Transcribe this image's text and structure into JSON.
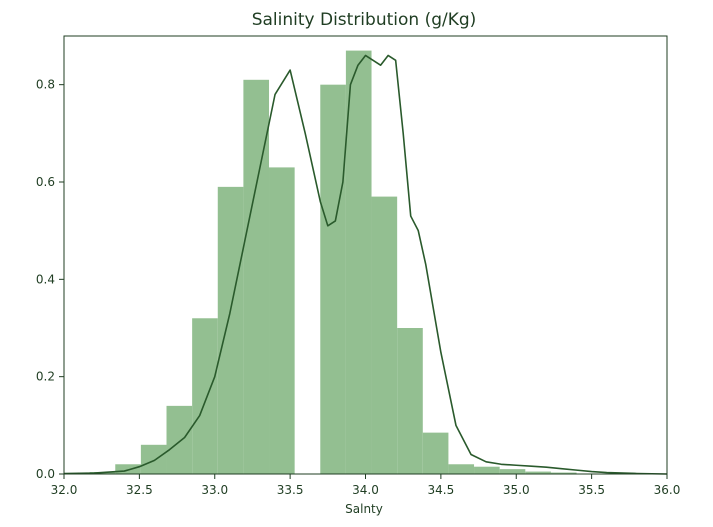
{
  "colors": {
    "bar_fill": "#93bf91",
    "line": "#2a5a2c",
    "frame": "#1f3d22",
    "text": "#1f3d22"
  },
  "chart_data": {
    "type": "bar",
    "title": "Salinity Distribution (g/Kg)",
    "xlabel": "Salnty",
    "ylabel": "",
    "xlim": [
      32.0,
      36.0
    ],
    "ylim": [
      0.0,
      0.9
    ],
    "grid": false,
    "x_ticks": [
      "32.0",
      "32.5",
      "33.0",
      "33.5",
      "34.0",
      "34.5",
      "35.0",
      "35.5",
      "36.0"
    ],
    "y_ticks": [
      "0.0",
      "0.2",
      "0.4",
      "0.6",
      "0.8"
    ],
    "histogram": {
      "bin_edges": [
        32.0,
        32.17,
        32.34,
        32.51,
        32.68,
        32.85,
        33.02,
        33.19,
        33.36,
        33.53,
        33.7,
        33.87,
        34.04,
        34.21,
        34.38,
        34.55,
        34.72,
        34.89,
        35.06,
        35.23,
        35.4,
        35.57,
        35.74,
        35.91
      ],
      "counts": [
        0.002,
        0.004,
        0.02,
        0.06,
        0.14,
        0.32,
        0.59,
        0.81,
        0.63,
        0.0,
        0.8,
        0.87,
        0.57,
        0.3,
        0.085,
        0.02,
        0.015,
        0.01,
        0.005,
        0.003,
        0.0,
        0.0,
        0.0
      ]
    },
    "kde": {
      "x": [
        32.0,
        32.2,
        32.4,
        32.5,
        32.6,
        32.7,
        32.8,
        32.9,
        33.0,
        33.1,
        33.2,
        33.3,
        33.4,
        33.5,
        33.6,
        33.7,
        33.75,
        33.8,
        33.85,
        33.9,
        33.95,
        34.0,
        34.05,
        34.1,
        34.15,
        34.2,
        34.25,
        34.3,
        34.35,
        34.4,
        34.5,
        34.6,
        34.7,
        34.8,
        34.9,
        35.0,
        35.1,
        35.2,
        35.3,
        35.4,
        35.5,
        35.6,
        35.8,
        36.0
      ],
      "y": [
        0.001,
        0.002,
        0.006,
        0.015,
        0.028,
        0.05,
        0.075,
        0.12,
        0.2,
        0.33,
        0.48,
        0.63,
        0.78,
        0.83,
        0.7,
        0.56,
        0.51,
        0.52,
        0.6,
        0.8,
        0.84,
        0.86,
        0.85,
        0.84,
        0.86,
        0.85,
        0.7,
        0.53,
        0.5,
        0.43,
        0.25,
        0.1,
        0.04,
        0.025,
        0.02,
        0.018,
        0.016,
        0.014,
        0.011,
        0.008,
        0.005,
        0.003,
        0.001,
        0.0
      ]
    }
  }
}
